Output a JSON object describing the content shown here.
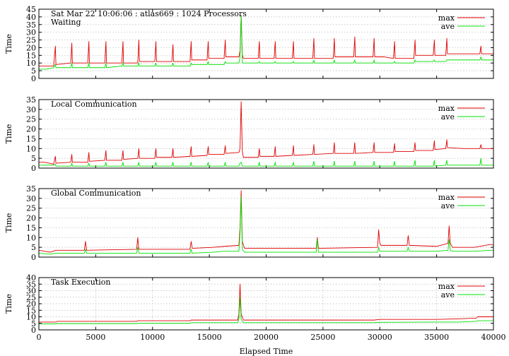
{
  "chart_data": [
    {
      "type": "line",
      "title": "Sat Mar 22 10:06:06 : atlas669 : 1024 Processors",
      "subtitle": "Waiting",
      "ylabel": "Time",
      "xlabel": "",
      "xlim": [
        0,
        40000
      ],
      "ylim": [
        0,
        45
      ],
      "yticks": [
        0,
        5,
        10,
        15,
        20,
        25,
        30,
        35,
        40,
        45
      ],
      "xticks": [
        0,
        5000,
        10000,
        15000,
        20000,
        25000,
        30000,
        35000,
        40000
      ],
      "show_xtick_labels": false,
      "grid": "horizontal",
      "legend": "top-right",
      "series": [
        {
          "name": "max",
          "color": "#e00000",
          "x": [
            0,
            700,
            1300,
            1450,
            1500,
            2800,
            2900,
            2950,
            4300,
            4400,
            4450,
            5800,
            5900,
            5950,
            7300,
            7400,
            7450,
            8700,
            8800,
            8850,
            10200,
            10300,
            10350,
            11700,
            11800,
            11850,
            13300,
            13400,
            13450,
            14800,
            14900,
            14950,
            16300,
            16400,
            16450,
            17600,
            17700,
            17800,
            17900,
            18000,
            19300,
            19400,
            19450,
            20700,
            20800,
            20850,
            22300,
            22400,
            22450,
            24100,
            24200,
            24250,
            25900,
            26000,
            26050,
            27700,
            27800,
            27850,
            29400,
            29500,
            29550,
            30400,
            31200,
            31300,
            31350,
            33000,
            33100,
            33150,
            34700,
            34800,
            34850,
            35800,
            35900,
            35950,
            37300,
            38800,
            38900,
            38950,
            40000
          ],
          "values": [
            8,
            8,
            8,
            21,
            9,
            10,
            23,
            10,
            10,
            24,
            10,
            10,
            24,
            10,
            10,
            24,
            10,
            10,
            25,
            11,
            11,
            24,
            11,
            11,
            22,
            11,
            11,
            24,
            12,
            12,
            24,
            13,
            13,
            25,
            14,
            14,
            18,
            41,
            15,
            13,
            13,
            24,
            13,
            13,
            24,
            13,
            13,
            24,
            13,
            13,
            26,
            13,
            13,
            26,
            14,
            14,
            27,
            14,
            14,
            26,
            14,
            14,
            13,
            24,
            13,
            13,
            25,
            15,
            15,
            25,
            15,
            15,
            26,
            16,
            16,
            16,
            21,
            16,
            16
          ]
        },
        {
          "name": "ave",
          "color": "#00e000",
          "x": [
            0,
            700,
            1300,
            1450,
            1500,
            2800,
            2900,
            2950,
            4300,
            4400,
            4450,
            5800,
            5900,
            5950,
            7300,
            7400,
            7450,
            8700,
            8800,
            8850,
            10200,
            10300,
            10350,
            11700,
            11800,
            11850,
            13300,
            13400,
            13450,
            14800,
            14900,
            14950,
            16300,
            16400,
            16450,
            17600,
            17700,
            17800,
            17900,
            18000,
            19300,
            19400,
            19450,
            20700,
            20800,
            20850,
            22300,
            22400,
            22450,
            24100,
            24200,
            24250,
            25900,
            26000,
            26050,
            27700,
            27800,
            27850,
            29400,
            29500,
            29550,
            30400,
            31200,
            31300,
            31350,
            33000,
            33100,
            33150,
            34700,
            34800,
            34850,
            35800,
            35900,
            35950,
            37300,
            38800,
            38900,
            38950,
            40000
          ],
          "values": [
            6,
            6,
            7,
            9,
            7,
            7,
            10,
            7,
            7,
            10,
            7,
            7,
            10,
            7,
            8,
            10,
            8,
            8,
            10,
            8,
            8,
            10,
            8,
            8,
            10,
            8,
            8,
            10,
            9,
            9,
            11,
            9,
            9,
            11,
            10,
            10,
            14,
            41,
            10,
            10,
            10,
            11,
            10,
            10,
            11,
            10,
            10,
            11,
            10,
            10,
            12,
            10,
            10,
            12,
            10,
            10,
            12,
            10,
            10,
            12,
            10,
            10,
            10,
            11,
            10,
            10,
            12,
            11,
            11,
            12,
            11,
            11,
            12,
            12,
            12,
            12,
            14,
            12,
            12
          ]
        }
      ]
    },
    {
      "type": "line",
      "title": "Local Communication",
      "ylabel": "Time",
      "xlabel": "",
      "xlim": [
        0,
        40000
      ],
      "ylim": [
        0,
        35
      ],
      "yticks": [
        0,
        5,
        10,
        15,
        20,
        25,
        30,
        35
      ],
      "xticks": [
        0,
        5000,
        10000,
        15000,
        20000,
        25000,
        30000,
        35000,
        40000
      ],
      "show_xtick_labels": false,
      "grid": "horizontal",
      "legend": "top-right",
      "series": [
        {
          "name": "max",
          "color": "#e00000",
          "x": [
            0,
            500,
            1300,
            1450,
            1500,
            2800,
            2900,
            2950,
            4300,
            4400,
            4450,
            5800,
            5900,
            5950,
            7300,
            7400,
            7450,
            8700,
            8800,
            8850,
            10200,
            10300,
            10350,
            11700,
            11800,
            11850,
            13300,
            13400,
            13450,
            14800,
            14900,
            14950,
            16300,
            16400,
            16450,
            17600,
            17700,
            17800,
            17900,
            18000,
            19300,
            19400,
            19450,
            20700,
            20800,
            20850,
            22300,
            22400,
            22450,
            24100,
            24200,
            24250,
            25900,
            26000,
            26050,
            27700,
            27800,
            27850,
            29400,
            29500,
            29550,
            30400,
            31200,
            31300,
            31350,
            33000,
            33100,
            33150,
            34700,
            34800,
            34850,
            35800,
            35900,
            35950,
            37300,
            38800,
            38900,
            38950,
            40000
          ],
          "values": [
            3,
            3,
            2,
            6,
            2.5,
            3,
            7,
            3,
            3,
            8,
            3.5,
            4,
            9,
            4,
            4,
            9,
            4.5,
            5,
            10,
            5,
            5,
            10,
            5.5,
            5.5,
            10,
            5.5,
            6,
            11,
            6,
            6.5,
            11,
            7,
            7,
            11.5,
            7.5,
            8,
            10,
            34,
            8.5,
            5.5,
            5.5,
            10,
            6,
            6,
            11,
            6,
            6.5,
            11.5,
            6.5,
            7,
            12,
            7,
            7.5,
            13,
            7.5,
            7.5,
            13,
            7.5,
            8,
            13,
            8,
            8,
            8,
            12.5,
            8.5,
            8.5,
            13,
            9,
            9,
            14,
            9.5,
            10,
            14.5,
            10.5,
            10,
            10,
            12,
            10,
            10
          ]
        },
        {
          "name": "ave",
          "color": "#00e000",
          "x": [
            0,
            500,
            1300,
            1450,
            1500,
            2800,
            2900,
            2950,
            4300,
            4400,
            4450,
            5800,
            5900,
            5950,
            7300,
            7400,
            7450,
            8700,
            8800,
            8850,
            10200,
            10300,
            10350,
            11700,
            11800,
            11850,
            13300,
            13400,
            13450,
            14800,
            14900,
            14950,
            16300,
            16400,
            16450,
            17600,
            17700,
            17800,
            17900,
            18000,
            19300,
            19400,
            19450,
            20700,
            20800,
            20850,
            22300,
            22400,
            22450,
            24100,
            24200,
            24250,
            25900,
            26000,
            26050,
            27700,
            27800,
            27850,
            29400,
            29500,
            29550,
            30400,
            31200,
            31300,
            31350,
            33000,
            33100,
            33150,
            34700,
            34800,
            34850,
            35800,
            35900,
            35950,
            37300,
            38800,
            38900,
            38950,
            40000
          ],
          "values": [
            1.5,
            1.5,
            1.5,
            2,
            1,
            1,
            2.5,
            1,
            1,
            2.5,
            1,
            1,
            3,
            1,
            1,
            3,
            1,
            1,
            3,
            1,
            1,
            3,
            1,
            1,
            3,
            1,
            1,
            3,
            1,
            1,
            3,
            1,
            1,
            3,
            1,
            1,
            2.5,
            3,
            1,
            1,
            1,
            3,
            1,
            1,
            3,
            1,
            1,
            3,
            1,
            1,
            3.5,
            1,
            1,
            3.5,
            1,
            1,
            3.5,
            1,
            1,
            3.5,
            1,
            1,
            1,
            3.5,
            1,
            1,
            4,
            1,
            1,
            4,
            1,
            1.5,
            4,
            1.5,
            1.5,
            1.5,
            5,
            1.5,
            1.5
          ]
        }
      ]
    },
    {
      "type": "line",
      "title": "Global Communication",
      "ylabel": "Time",
      "xlabel": "",
      "xlim": [
        0,
        40000
      ],
      "ylim": [
        0,
        35
      ],
      "yticks": [
        0,
        5,
        10,
        15,
        20,
        25,
        30,
        35
      ],
      "xticks": [
        0,
        5000,
        10000,
        15000,
        20000,
        25000,
        30000,
        35000,
        40000
      ],
      "show_xtick_labels": false,
      "grid": "horizontal",
      "legend": "top-right",
      "series": [
        {
          "name": "max",
          "color": "#e00000",
          "x": [
            0,
            1000,
            1500,
            4000,
            4100,
            4200,
            8600,
            8700,
            8800,
            13300,
            13400,
            13500,
            15300,
            16300,
            17600,
            17700,
            17800,
            17900,
            18100,
            24400,
            24500,
            24600,
            29800,
            29900,
            30000,
            30100,
            32400,
            32500,
            32600,
            35000,
            36000,
            36100,
            36200,
            36400,
            38300,
            39800,
            40000
          ],
          "values": [
            3.5,
            2.5,
            3.5,
            3.5,
            8,
            3.5,
            4,
            10,
            4,
            4,
            8,
            4.5,
            5,
            5.5,
            6,
            15,
            34,
            8,
            4.5,
            4.5,
            10,
            4.5,
            5,
            14,
            7,
            6,
            6,
            11,
            6,
            5.5,
            7,
            16,
            7,
            5,
            5,
            6.5,
            6
          ]
        },
        {
          "name": "ave",
          "color": "#00e000",
          "x": [
            0,
            1000,
            1500,
            4000,
            4100,
            4200,
            8600,
            8700,
            8800,
            13300,
            13400,
            13500,
            15300,
            16300,
            17600,
            17700,
            17800,
            17900,
            18100,
            24400,
            24500,
            24600,
            29800,
            29900,
            30000,
            30100,
            32400,
            32500,
            32600,
            35000,
            36000,
            36100,
            36200,
            36400,
            38300,
            39800,
            40000
          ],
          "values": [
            2,
            1.5,
            2,
            2,
            4,
            2,
            2,
            5,
            2,
            2,
            4,
            2,
            2.5,
            3,
            3,
            12,
            31,
            4,
            2.5,
            2.5,
            9,
            2.5,
            2.5,
            5,
            3,
            3,
            3,
            5,
            3,
            3,
            3.5,
            9,
            3.5,
            3,
            3,
            3.5,
            3.5
          ]
        }
      ]
    },
    {
      "type": "line",
      "title": "Task Execution",
      "ylabel": "Time",
      "xlabel": "Elapsed Time",
      "xlim": [
        0,
        40000
      ],
      "ylim": [
        0,
        40
      ],
      "yticks": [
        0,
        5,
        10,
        15,
        20,
        25,
        30,
        35,
        40
      ],
      "xticks": [
        0,
        5000,
        10000,
        15000,
        20000,
        25000,
        30000,
        35000,
        40000
      ],
      "show_xtick_labels": true,
      "grid": "both",
      "legend": "top-right",
      "series": [
        {
          "name": "max",
          "color": "#e00000",
          "x": [
            0,
            1500,
            1600,
            5000,
            8600,
            8700,
            13300,
            13400,
            16000,
            17500,
            17600,
            17700,
            17800,
            18000,
            22000,
            29500,
            30000,
            35000,
            37000,
            38500,
            38600,
            40000
          ],
          "values": [
            6,
            6,
            6.5,
            6.5,
            6.5,
            7,
            7,
            7.5,
            7.5,
            7.5,
            12,
            35,
            12,
            7.5,
            7.5,
            7.5,
            8,
            8,
            8.5,
            9,
            10,
            10
          ]
        },
        {
          "name": "ave",
          "color": "#00e000",
          "x": [
            0,
            1500,
            1600,
            5000,
            8600,
            8700,
            13300,
            13400,
            16000,
            17500,
            17600,
            17700,
            17800,
            18000,
            22000,
            29500,
            30000,
            35000,
            37000,
            38500,
            38600,
            40000
          ],
          "values": [
            4.5,
            4.5,
            4.8,
            4.8,
            4.8,
            5,
            5,
            5.5,
            5.5,
            5.5,
            8,
            25,
            8,
            5.5,
            5.5,
            5.5,
            5.8,
            6,
            6,
            6.5,
            7,
            7
          ]
        }
      ]
    }
  ]
}
